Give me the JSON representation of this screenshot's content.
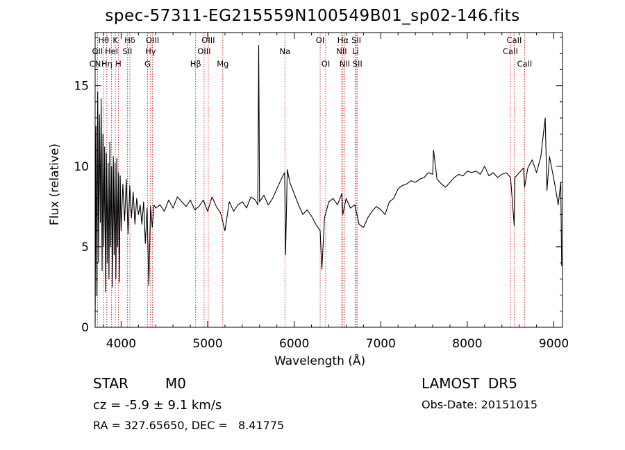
{
  "chart_data": {
    "type": "line",
    "title": "spec-57311-EG215559N100549B01_sp02-146.fits",
    "xlabel": "Wavelength (Å)",
    "ylabel": "Flux (relative)",
    "xlim": [
      3700,
      9100
    ],
    "ylim": [
      0,
      18.3
    ],
    "xticks": [
      4000,
      5000,
      6000,
      7000,
      8000,
      9000
    ],
    "yticks": [
      0,
      5,
      10,
      15
    ],
    "grid": false,
    "series": [
      {
        "x": [
          3700,
          3710,
          3720,
          3730,
          3740,
          3750,
          3760,
          3770,
          3780,
          3790,
          3800,
          3810,
          3820,
          3830,
          3840,
          3850,
          3860,
          3870,
          3880,
          3890,
          3900,
          3910,
          3920,
          3930,
          3940,
          3950,
          3960,
          3970,
          3980,
          3990,
          4000,
          4020,
          4040,
          4060,
          4080,
          4100,
          4120,
          4140,
          4160,
          4180,
          4200,
          4220,
          4240,
          4260,
          4280,
          4300,
          4320,
          4340,
          4360,
          4380,
          4400,
          4450,
          4500,
          4550,
          4600,
          4650,
          4700,
          4750,
          4800,
          4850,
          4900,
          4950,
          5000,
          5050,
          5100,
          5150,
          5200,
          5250,
          5300,
          5350,
          5400,
          5450,
          5500,
          5550,
          5580,
          5590,
          5600,
          5650,
          5700,
          5750,
          5800,
          5850,
          5890,
          5900,
          5920,
          5950,
          6000,
          6050,
          6100,
          6150,
          6200,
          6250,
          6300,
          6320,
          6350,
          6400,
          6450,
          6500,
          6550,
          6562,
          6600,
          6650,
          6700,
          6750,
          6800,
          6850,
          6900,
          6950,
          7000,
          7050,
          7100,
          7150,
          7200,
          7250,
          7300,
          7350,
          7400,
          7450,
          7500,
          7550,
          7600,
          7610,
          7650,
          7700,
          7750,
          7800,
          7850,
          7900,
          7950,
          8000,
          8050,
          8100,
          8150,
          8200,
          8250,
          8300,
          8350,
          8400,
          8450,
          8500,
          8542,
          8550,
          8600,
          8650,
          8662,
          8700,
          8750,
          8800,
          8850,
          8900,
          8920,
          8950,
          9000,
          9020,
          9050,
          9080,
          9090
        ],
        "y": [
          0.3,
          12.5,
          2.0,
          14.6,
          4.0,
          13.2,
          6.5,
          14.2,
          3.5,
          12.0,
          5.0,
          11.2,
          2.2,
          10.8,
          4.0,
          10.2,
          3.0,
          11.5,
          5.0,
          10.0,
          2.5,
          10.6,
          4.5,
          10.2,
          3.0,
          10.5,
          5.0,
          9.6,
          2.8,
          9.4,
          6.0,
          8.9,
          6.6,
          9.2,
          5.8,
          8.8,
          6.8,
          8.4,
          6.4,
          8.0,
          7.0,
          7.6,
          6.4,
          7.8,
          5.2,
          7.4,
          2.6,
          7.5,
          6.2,
          7.6,
          7.4,
          7.6,
          7.2,
          7.9,
          7.4,
          8.1,
          7.8,
          7.5,
          7.9,
          7.3,
          7.5,
          7.9,
          7.2,
          8.1,
          7.5,
          7.1,
          6.0,
          7.8,
          7.2,
          7.6,
          7.8,
          7.4,
          8.1,
          7.9,
          7.6,
          17.5,
          7.8,
          8.2,
          7.6,
          8.0,
          8.6,
          9.2,
          9.6,
          4.5,
          9.8,
          9.0,
          8.3,
          7.6,
          7.0,
          7.3,
          6.9,
          6.4,
          6.0,
          3.6,
          6.8,
          7.8,
          8.0,
          7.6,
          8.3,
          7.0,
          8.0,
          7.4,
          7.6,
          6.4,
          6.2,
          6.8,
          7.2,
          7.5,
          7.3,
          7.0,
          7.8,
          8.0,
          8.6,
          8.8,
          8.9,
          9.1,
          9.0,
          9.2,
          9.3,
          9.6,
          9.5,
          11.0,
          9.2,
          8.9,
          8.7,
          9.0,
          9.3,
          9.5,
          9.4,
          9.7,
          9.6,
          9.7,
          9.5,
          10.0,
          9.4,
          9.6,
          9.3,
          9.5,
          9.6,
          9.3,
          6.3,
          9.3,
          9.6,
          9.9,
          8.7,
          9.9,
          10.4,
          9.6,
          10.6,
          13.0,
          8.5,
          10.6,
          9.2,
          8.6,
          7.6,
          9.0,
          3.8
        ]
      }
    ],
    "lines": [
      {
        "label": "Hθ",
        "x": 3798,
        "row": 1
      },
      {
        "label": "OII",
        "x": 3727,
        "row": 2
      },
      {
        "label": "CN",
        "x": 3700,
        "row": 3
      },
      {
        "label": "Hη",
        "x": 3835,
        "row": 3
      },
      {
        "label": "K",
        "x": 3934,
        "row": 1
      },
      {
        "label": "HeI",
        "x": 3889,
        "row": 2
      },
      {
        "label": "H",
        "x": 3968,
        "row": 3
      },
      {
        "label": "Hδ",
        "x": 4101,
        "row": 1
      },
      {
        "label": "SII",
        "x": 4072,
        "row": 2
      },
      {
        "label": "OIII",
        "x": 4363,
        "row": 1
      },
      {
        "label": "Hγ",
        "x": 4341,
        "row": 2
      },
      {
        "label": "G",
        "x": 4305,
        "row": 3
      },
      {
        "label": "OIII",
        "x": 5007,
        "row": 1
      },
      {
        "label": "OIII",
        "x": 4959,
        "row": 2
      },
      {
        "label": "Hβ",
        "x": 4861,
        "row": 3
      },
      {
        "label": "Mg",
        "x": 5175,
        "row": 3
      },
      {
        "label": "Na",
        "x": 5893,
        "row": 2
      },
      {
        "label": "OI",
        "x": 6300,
        "row": 1
      },
      {
        "label": "OI",
        "x": 6364,
        "row": 3
      },
      {
        "label": "Hα",
        "x": 6563,
        "row": 1
      },
      {
        "label": "NII",
        "x": 6548,
        "row": 2
      },
      {
        "label": "NII",
        "x": 6584,
        "row": 3
      },
      {
        "label": "SII",
        "x": 6717,
        "row": 1
      },
      {
        "label": "Li",
        "x": 6708,
        "row": 2
      },
      {
        "label": "SII",
        "x": 6731,
        "row": 3
      },
      {
        "label": "CaII",
        "x": 8542,
        "row": 1
      },
      {
        "label": "CaII",
        "x": 8498,
        "row": 2
      },
      {
        "label": "CaII",
        "x": 8662,
        "row": 3
      }
    ]
  },
  "footer": {
    "object_class": "STAR",
    "subclass": "M0",
    "survey": "LAMOST  DR5",
    "cz": "cz = -5.9 ± 9.1 km/s",
    "obs_date": "Obs-Date: 20151015",
    "coords": "RA = 327.65650, DEC =   8.41775"
  },
  "colors": {
    "line": "#000000",
    "marker": "#cc0000",
    "axis": "#000000"
  }
}
